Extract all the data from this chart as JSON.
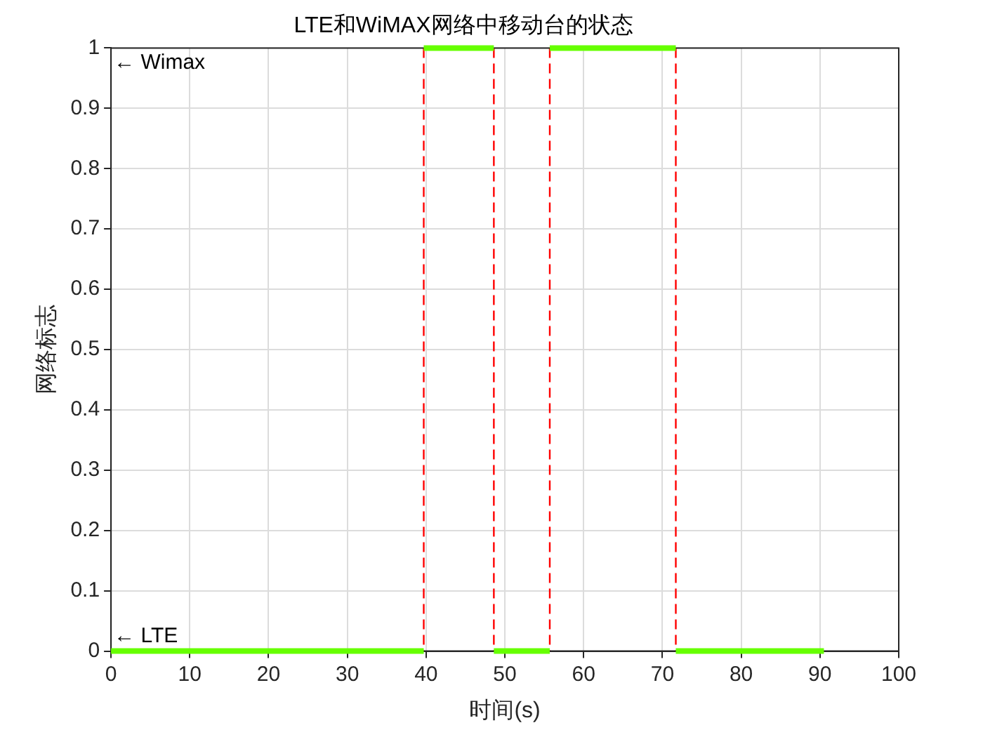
{
  "chart_data": {
    "type": "line",
    "title": "LTE和WiMAX网络中移动台的状态",
    "xlabel": "时间(s)",
    "ylabel": "网络标志",
    "series": [
      {
        "color": "#66ff00",
        "x": [
          0,
          39.7
        ],
        "values": [
          0,
          0
        ]
      },
      {
        "color": "#66ff00",
        "x": [
          39.7,
          48.6
        ],
        "values": [
          1,
          1
        ]
      },
      {
        "color": "#66ff00",
        "x": [
          48.6,
          55.7
        ],
        "values": [
          0,
          0
        ]
      },
      {
        "color": "#66ff00",
        "x": [
          55.7,
          71.7
        ],
        "values": [
          1,
          1
        ]
      },
      {
        "color": "#66ff00",
        "x": [
          71.7,
          90.5
        ],
        "values": [
          0,
          0
        ]
      }
    ],
    "xlim": [
      0,
      100
    ],
    "xticks": [
      0,
      10,
      20,
      30,
      40,
      50,
      60,
      70,
      80,
      90,
      100
    ],
    "ylim": [
      0,
      1
    ],
    "yticks": [
      0,
      0.1,
      0.2,
      0.3,
      0.4,
      0.5,
      0.6,
      0.7,
      0.8,
      0.9,
      1
    ],
    "grid": true,
    "legend": false,
    "marker": "none",
    "line_style": "solid",
    "ref_lines": [
      {
        "axis": "x",
        "value": 39.7,
        "color": "#ff0000",
        "line_style": "dashed"
      },
      {
        "axis": "x",
        "value": 48.6,
        "color": "#ff0000",
        "line_style": "dashed"
      },
      {
        "axis": "x",
        "value": 55.7,
        "color": "#ff0000",
        "line_style": "dashed"
      },
      {
        "axis": "x",
        "value": 71.7,
        "color": "#ff0000",
        "line_style": "dashed"
      }
    ],
    "annotations": [
      "← Wimax",
      {
        "text": "← LTE",
        "x": 0,
        "y": 0
      }
    ]
  }
}
